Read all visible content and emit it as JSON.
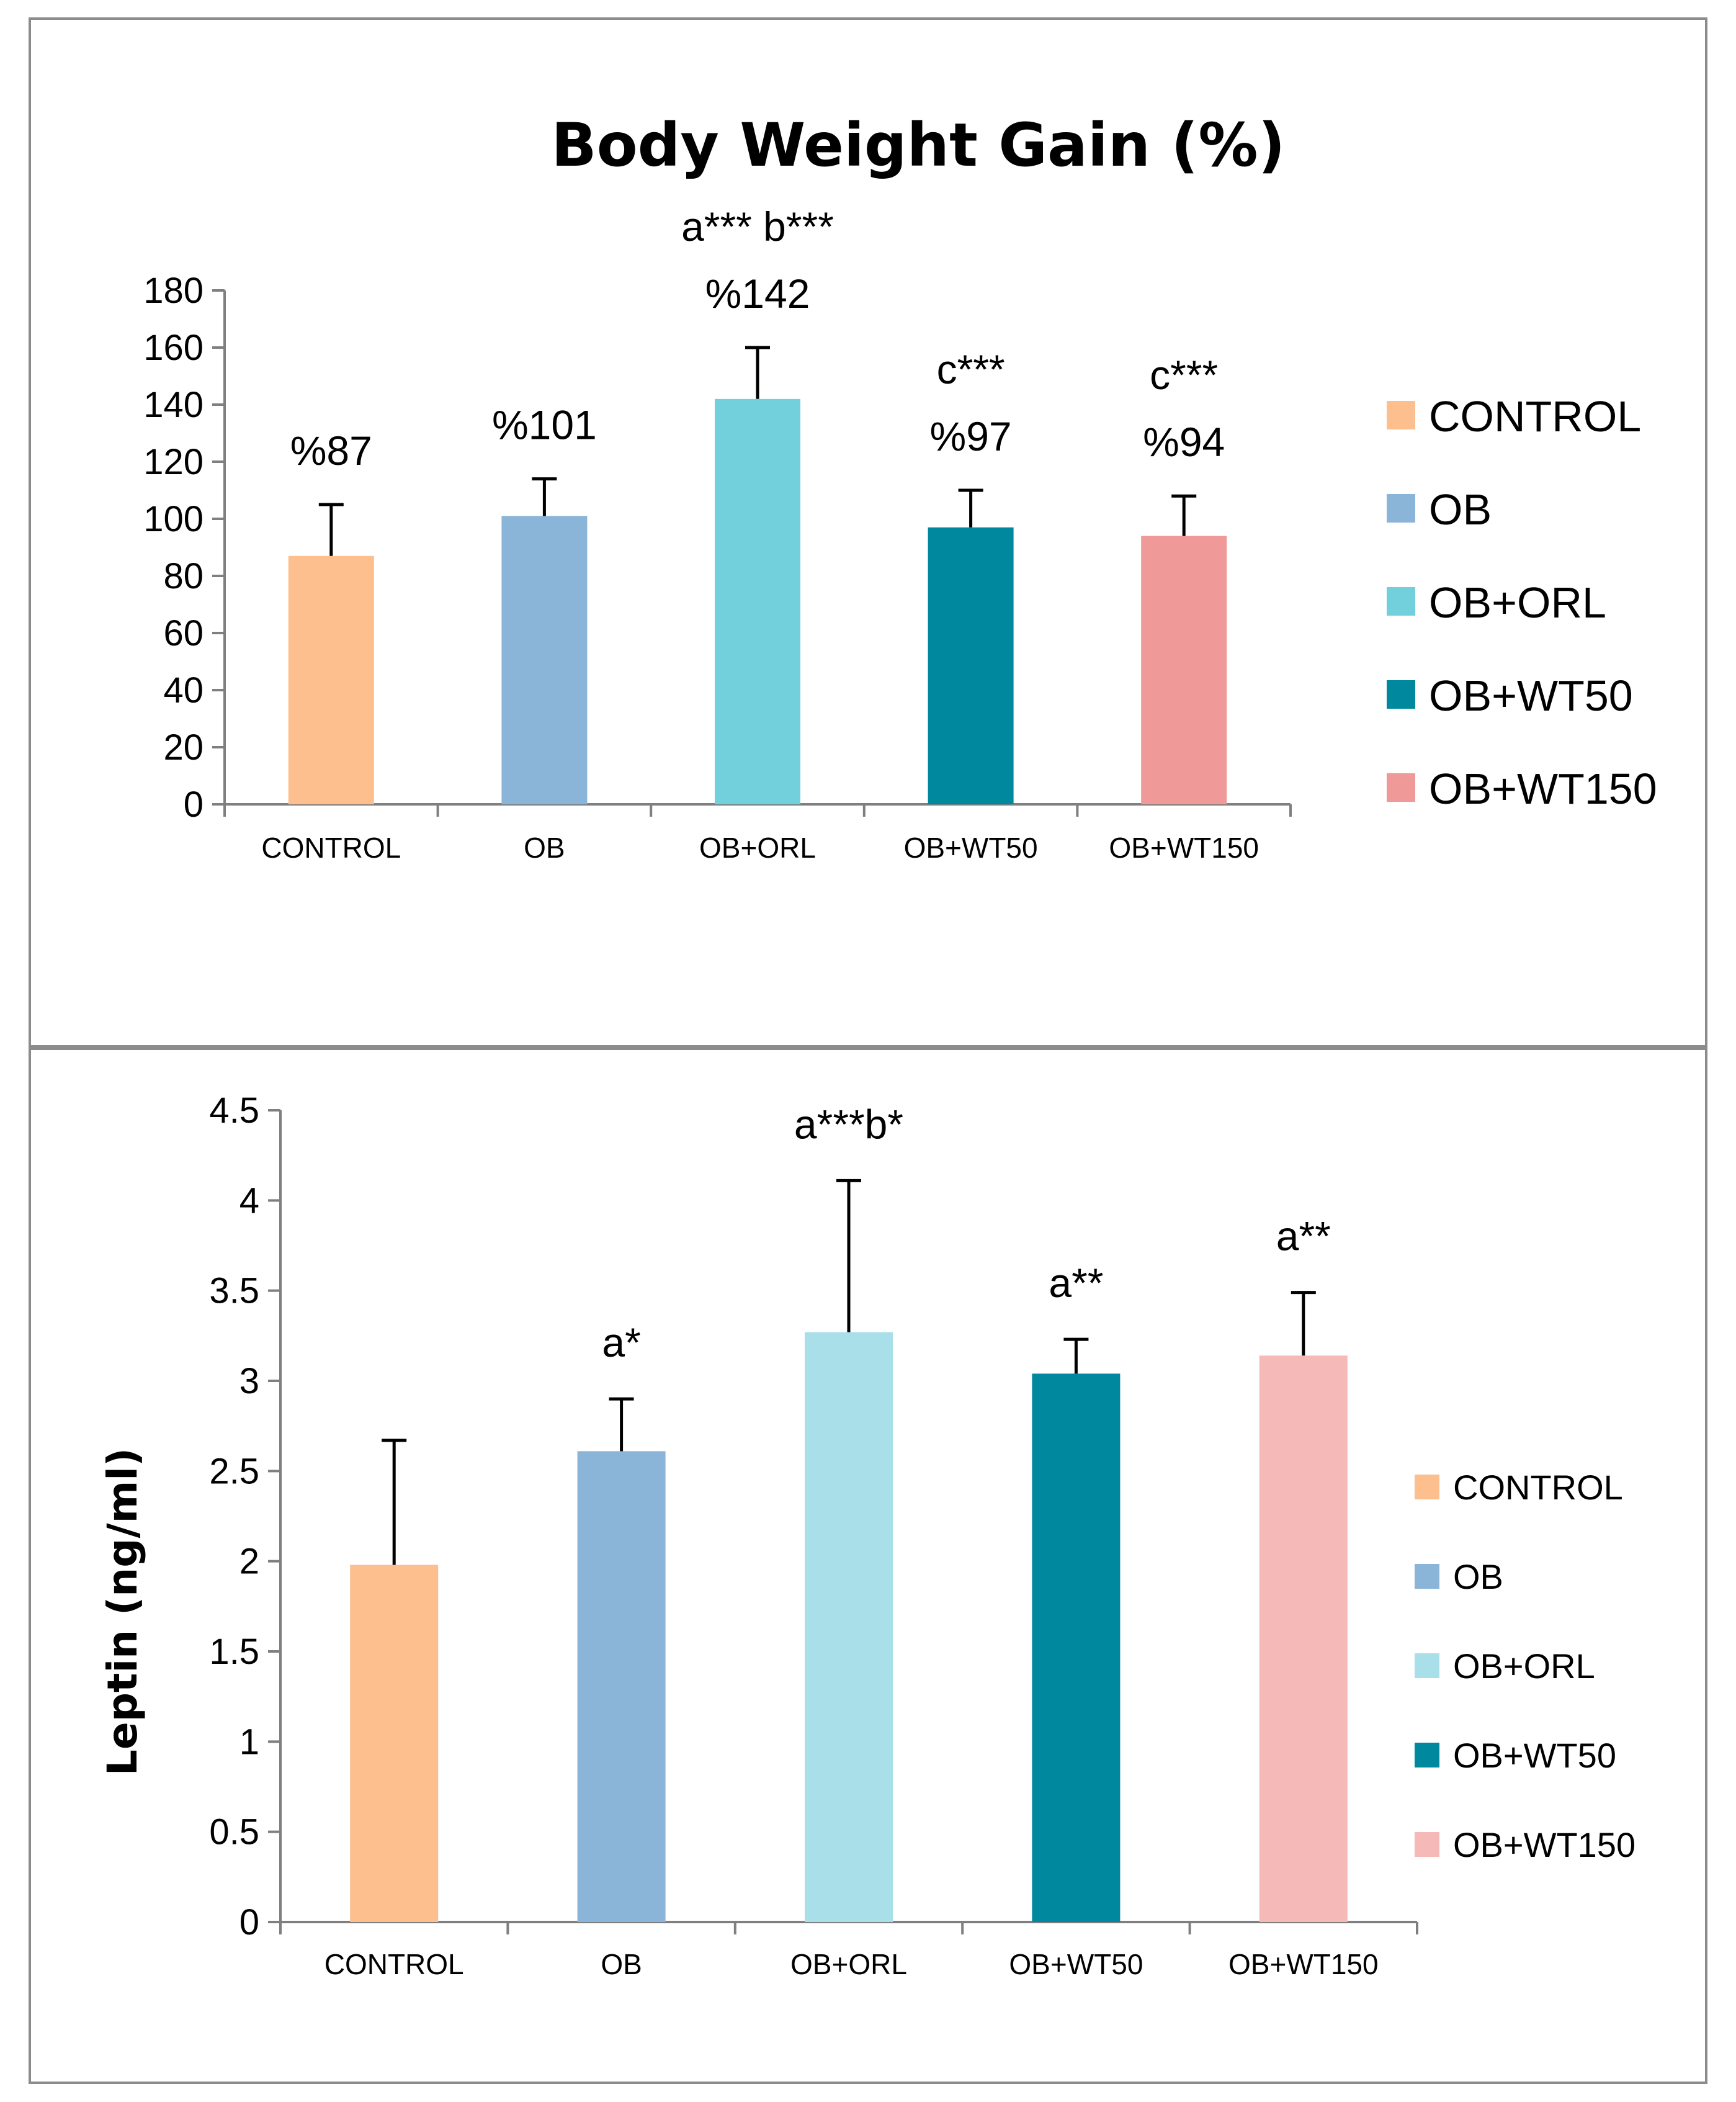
{
  "chart_data": [
    {
      "type": "bar",
      "title": "Body Weight Gain (%)",
      "xlabel": "",
      "ylabel": "",
      "ylim": [
        0,
        180
      ],
      "yticks": [
        0,
        20,
        40,
        60,
        80,
        100,
        120,
        140,
        160,
        180
      ],
      "yticklabels": [
        "0",
        "20",
        "40",
        "60",
        "80",
        "100",
        "120",
        "140",
        "160",
        "180"
      ],
      "categories": [
        "CONTROL",
        "OB",
        "OB+ORL",
        "OB+WT50",
        "OB+WT150"
      ],
      "values": [
        87,
        101,
        142,
        97,
        94
      ],
      "error_upper": [
        105,
        114,
        160,
        110,
        108
      ],
      "value_labels": [
        "%87",
        "%101",
        "%142",
        "%97",
        "%94"
      ],
      "significance": [
        "",
        "",
        "a*** b***",
        "c***",
        "c***"
      ],
      "colors": [
        "#fdbf8e",
        "#8ab4d8",
        "#72cfdc",
        "#00889f",
        "#ef9998"
      ],
      "legend": [
        "CONTROL",
        "OB",
        "OB+ORL",
        "OB+WT50",
        "OB+WT150"
      ],
      "legend_position": "right",
      "grid": false
    },
    {
      "type": "bar",
      "title": "",
      "xlabel": "",
      "ylabel": "Leptin (ng/ml)",
      "ylim": [
        0,
        4.5
      ],
      "yticks": [
        0,
        0.5,
        1,
        1.5,
        2,
        2.5,
        3,
        3.5,
        4,
        4.5
      ],
      "yticklabels": [
        "0",
        "0.5",
        "1",
        "1.5",
        "2",
        "2.5",
        "3",
        "3.5",
        "4",
        "4.5"
      ],
      "categories": [
        "CONTROL",
        "OB",
        "OB+ORL",
        "OB+WT50",
        "OB+WT150"
      ],
      "values": [
        1.98,
        2.61,
        3.27,
        3.04,
        3.14
      ],
      "error_upper": [
        2.67,
        2.9,
        4.11,
        3.23,
        3.49
      ],
      "significance": [
        "",
        "a*",
        "a***b*",
        "a**",
        "a**"
      ],
      "colors": [
        "#fdbf8e",
        "#8ab4d8",
        "#a8dfe8",
        "#00889f",
        "#f5b9b8"
      ],
      "legend": [
        "CONTROL",
        "OB",
        "OB+ORL",
        "OB+WT50",
        "OB+WT150"
      ],
      "legend_position": "right",
      "grid": false
    }
  ]
}
